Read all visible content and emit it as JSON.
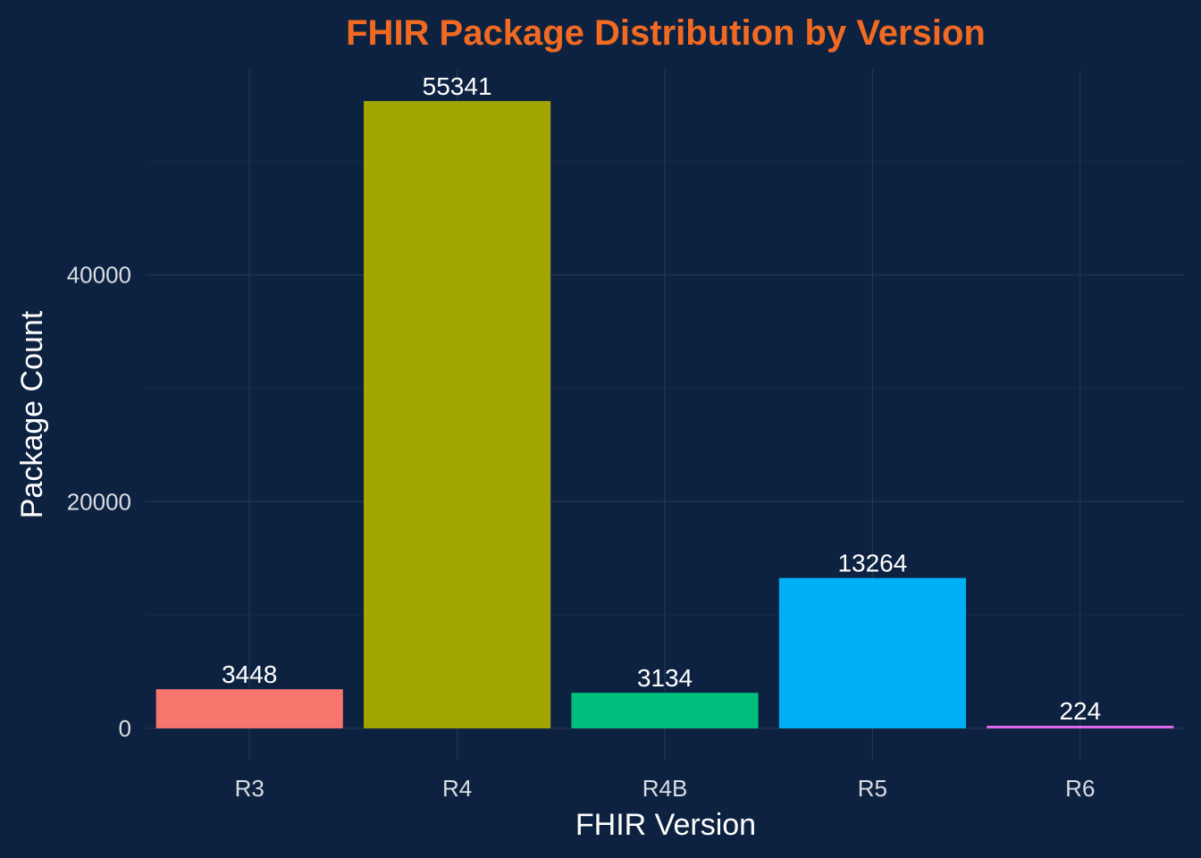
{
  "chart_data": {
    "type": "bar",
    "title": "FHIR Package Distribution by Version",
    "xlabel": "FHIR Version",
    "ylabel": "Package Count",
    "categories": [
      "R3",
      "R4",
      "R4B",
      "R5",
      "R6"
    ],
    "values": [
      3448,
      55341,
      3134,
      13264,
      224
    ],
    "data_labels": [
      "3448",
      "55341",
      "3134",
      "13264",
      "224"
    ],
    "colors": [
      "#f8766d",
      "#a3a500",
      "#00bf7d",
      "#00b0f6",
      "#e76bf3"
    ],
    "ylim": [
      -2767,
      58108
    ],
    "yticks": [
      0,
      20000,
      40000
    ],
    "ytick_labels": [
      "0",
      "20000",
      "40000"
    ],
    "grid": true,
    "legend": "none",
    "background": "#0d2240",
    "title_color": "#f26a21"
  }
}
